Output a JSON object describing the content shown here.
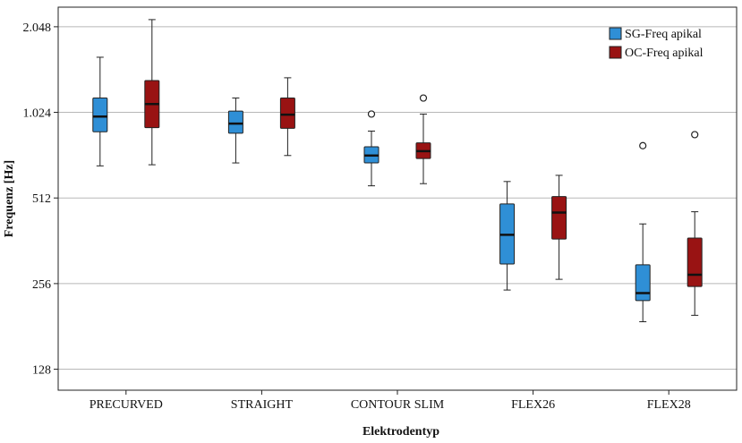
{
  "chart_data": {
    "type": "boxplot",
    "xlabel": "Elektrodentyp",
    "ylabel": "Frequenz [Hz]",
    "y_scale": "log2",
    "ylim": [
      108,
      2400
    ],
    "y_ticks": [
      128,
      256,
      512,
      1024,
      2048
    ],
    "y_tick_labels": [
      "128",
      "256",
      "512",
      "1.024",
      "2.048"
    ],
    "grid": true,
    "legend_position": "top-right",
    "categories": [
      "PRECURVED",
      "STRAIGHT",
      "CONTOUR SLIM",
      "FLEX26",
      "FLEX28"
    ],
    "series": [
      {
        "name": "SG-Freq apikal",
        "color": "#2f8fd6",
        "boxes": [
          {
            "min": 664,
            "q1": 875,
            "median": 990,
            "q3": 1150,
            "max": 1600,
            "outliers": []
          },
          {
            "min": 680,
            "q1": 865,
            "median": 935,
            "q3": 1035,
            "max": 1150,
            "outliers": []
          },
          {
            "min": 565,
            "q1": 680,
            "median": 722,
            "q3": 775,
            "max": 880,
            "outliers": [
              1010
            ]
          },
          {
            "min": 243,
            "q1": 300,
            "median": 380,
            "q3": 488,
            "max": 585,
            "outliers": []
          },
          {
            "min": 188,
            "q1": 223,
            "median": 237,
            "q3": 298,
            "max": 415,
            "outliers": [
              782
            ]
          }
        ]
      },
      {
        "name": "OC-Freq apikal",
        "color": "#991313",
        "boxes": [
          {
            "min": 670,
            "q1": 905,
            "median": 1095,
            "q3": 1325,
            "max": 2170,
            "outliers": []
          },
          {
            "min": 722,
            "q1": 900,
            "median": 1005,
            "q3": 1150,
            "max": 1355,
            "outliers": []
          },
          {
            "min": 575,
            "q1": 705,
            "median": 748,
            "q3": 800,
            "max": 1010,
            "outliers": [
              1150
            ]
          },
          {
            "min": 265,
            "q1": 367,
            "median": 455,
            "q3": 518,
            "max": 615,
            "outliers": []
          },
          {
            "min": 198,
            "q1": 250,
            "median": 275,
            "q3": 370,
            "max": 458,
            "outliers": [
              855
            ]
          }
        ]
      }
    ]
  }
}
